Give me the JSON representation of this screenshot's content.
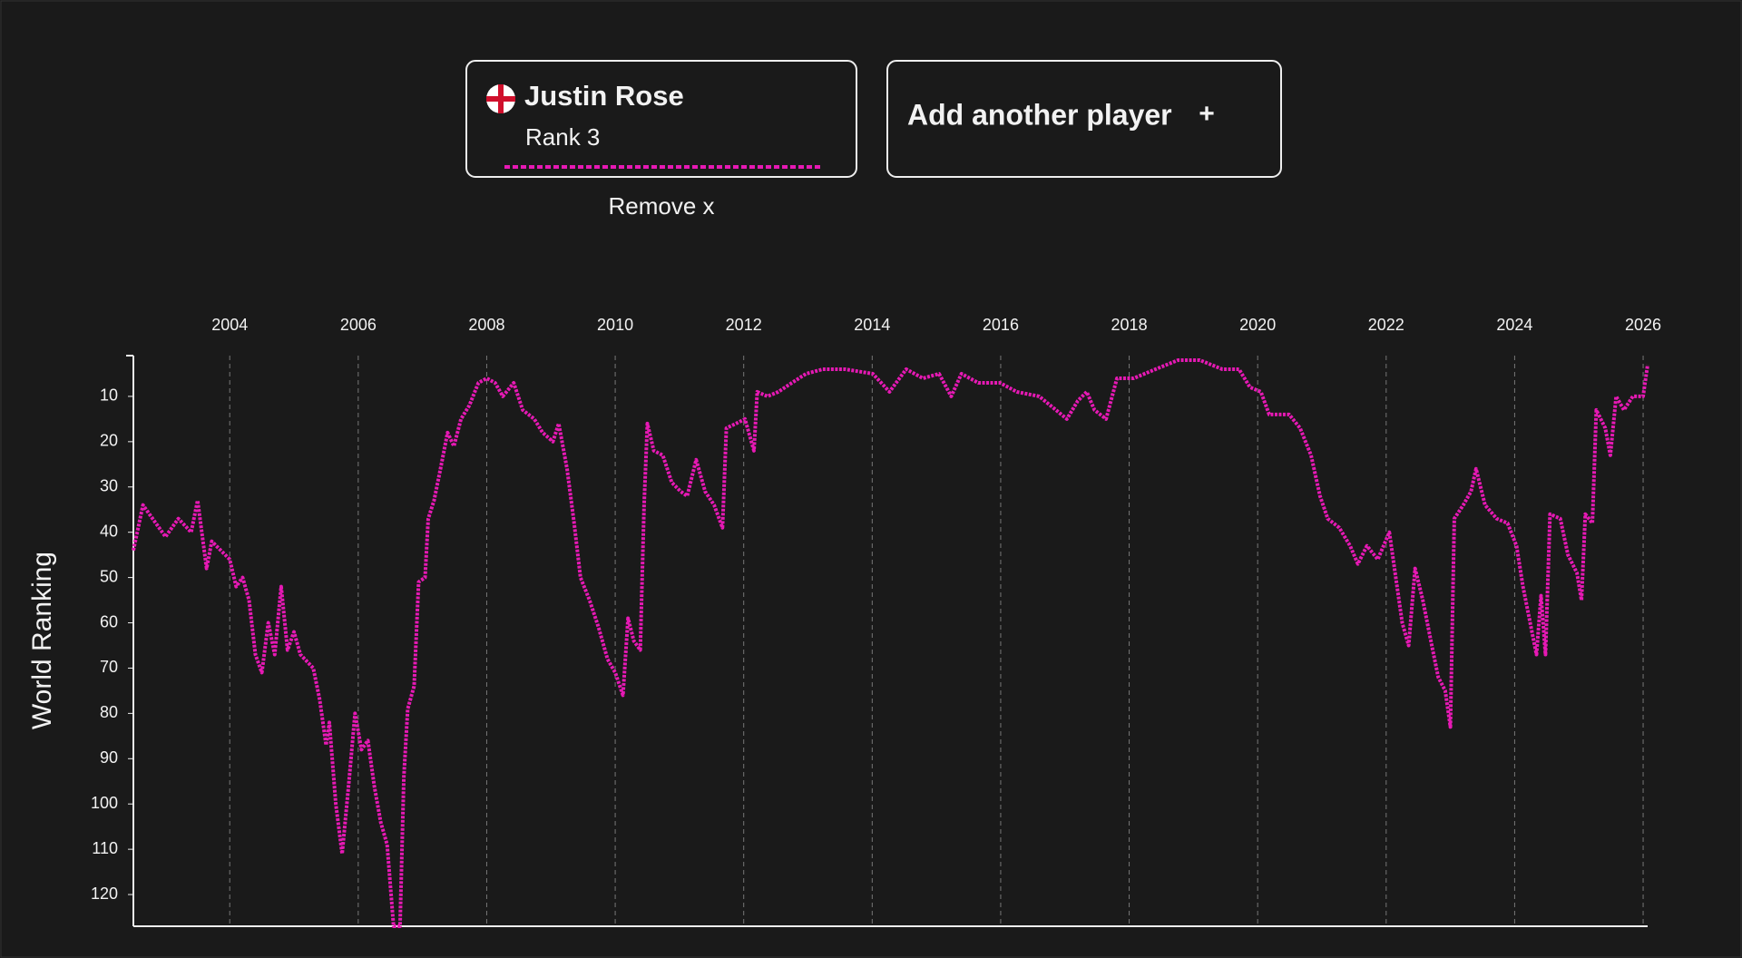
{
  "player_card": {
    "rank": "Rank 3",
    "remove": "Remove x"
  },
  "add_card": {
    "label": "Add another player",
    "icon": "+"
  },
  "chart_data": {
    "type": "line",
    "y_label": "World Ranking",
    "xlim": [
      2002.5,
      2026.07
    ],
    "xticks": [
      2004,
      2006,
      2008,
      2010,
      2012,
      2014,
      2016,
      2018,
      2020,
      2022,
      2024,
      2026
    ],
    "ylim": [
      127,
      1
    ],
    "yticks": [
      10,
      20,
      30,
      40,
      50,
      60,
      70,
      80,
      90,
      100,
      110,
      120
    ],
    "y_inverted": true,
    "grid": true,
    "series": [
      {
        "name": "Justin Rose",
        "color": "#e619b4",
        "x": [
          2002.5,
          2002.65,
          2002.8,
          2003.0,
          2003.2,
          2003.4,
          2003.5,
          2003.64,
          2003.72,
          2004.0,
          2004.1,
          2004.2,
          2004.3,
          2004.4,
          2004.5,
          2004.6,
          2004.7,
          2004.8,
          2004.9,
          2005.0,
          2005.1,
          2005.3,
          2005.4,
          2005.5,
          2005.55,
          2005.65,
          2005.75,
          2005.85,
          2005.95,
          2006.05,
          2006.15,
          2006.25,
          2006.35,
          2006.45,
          2006.55,
          2006.65,
          2006.71,
          2006.77,
          2006.87,
          2006.94,
          2007.04,
          2007.09,
          2007.18,
          2007.28,
          2007.39,
          2007.49,
          2007.6,
          2007.73,
          2007.87,
          2008.0,
          2008.13,
          2008.25,
          2008.42,
          2008.56,
          2008.74,
          2008.87,
          2009.03,
          2009.12,
          2009.25,
          2009.36,
          2009.46,
          2009.6,
          2009.74,
          2009.88,
          2010.0,
          2010.12,
          2010.2,
          2010.29,
          2010.39,
          2010.45,
          2010.5,
          2010.6,
          2010.74,
          2010.88,
          2011.02,
          2011.12,
          2011.26,
          2011.4,
          2011.54,
          2011.67,
          2011.73,
          2011.88,
          2012.02,
          2012.16,
          2012.21,
          2012.37,
          2012.54,
          2012.75,
          2012.97,
          2013.23,
          2013.58,
          2014.01,
          2014.27,
          2014.53,
          2014.79,
          2015.04,
          2015.23,
          2015.39,
          2015.65,
          2015.99,
          2016.25,
          2016.6,
          2016.86,
          2017.03,
          2017.2,
          2017.34,
          2017.46,
          2017.64,
          2017.81,
          2018.07,
          2018.41,
          2018.76,
          2019.1,
          2019.45,
          2019.71,
          2019.88,
          2020.05,
          2020.18,
          2020.49,
          2020.66,
          2020.83,
          2020.97,
          2021.09,
          2021.27,
          2021.44,
          2021.56,
          2021.7,
          2021.87,
          2022.05,
          2022.15,
          2022.25,
          2022.35,
          2022.45,
          2022.57,
          2022.71,
          2022.81,
          2022.92,
          2023.0,
          2023.06,
          2023.2,
          2023.32,
          2023.4,
          2023.54,
          2023.72,
          2023.89,
          2024.03,
          2024.13,
          2024.27,
          2024.34,
          2024.41,
          2024.48,
          2024.55,
          2024.71,
          2024.83,
          2024.97,
          2025.04,
          2025.1,
          2025.21,
          2025.27,
          2025.41,
          2025.49,
          2025.58,
          2025.7,
          2025.84,
          2026.0,
          2026.07
        ],
        "values": [
          44,
          34,
          37,
          41,
          37,
          40,
          33,
          48,
          42,
          46,
          52,
          50,
          55,
          67,
          71,
          60,
          67,
          52,
          66,
          62,
          67,
          70,
          77,
          87,
          82,
          100,
          111,
          96,
          80,
          88,
          86,
          96,
          104,
          109,
          127,
          127,
          94,
          79,
          74,
          51,
          50,
          37,
          33,
          26,
          18,
          21,
          15,
          12,
          7,
          6,
          7,
          10,
          7,
          13,
          15,
          18,
          20,
          16,
          26,
          38,
          50,
          55,
          61,
          68,
          71,
          76,
          59,
          64,
          66,
          34,
          16,
          22,
          23,
          29,
          31,
          32,
          24,
          31,
          34,
          39,
          17,
          16,
          15,
          22,
          9,
          10,
          9,
          7,
          5,
          4,
          4,
          5,
          9,
          4,
          6,
          5,
          10,
          5,
          7,
          7,
          9,
          10,
          13,
          15,
          11,
          9,
          13,
          15,
          6,
          6,
          4,
          2,
          2,
          4,
          4,
          8,
          9,
          14,
          14,
          17,
          23,
          32,
          37,
          39,
          43,
          47,
          43,
          46,
          40,
          50,
          60,
          65,
          48,
          55,
          65,
          72,
          75,
          83,
          37,
          34,
          31,
          26,
          34,
          37,
          38,
          43,
          52,
          62,
          67,
          54,
          67,
          36,
          37,
          45,
          49,
          55,
          36,
          38,
          13,
          17,
          23,
          10,
          13,
          10,
          10,
          3
        ]
      }
    ]
  }
}
